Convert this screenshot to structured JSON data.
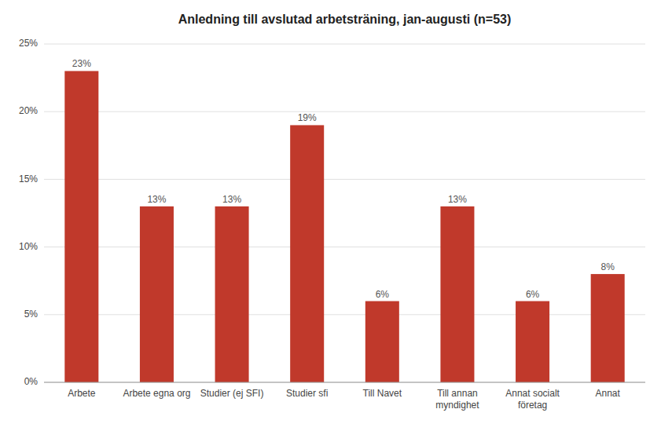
{
  "chart_data": {
    "type": "bar",
    "title": "Anledning till avslutad arbetsträning, jan-augusti (n=53)",
    "categories": [
      "Arbete",
      "Arbete egna org",
      "Studier (ej SFI)",
      "Studier sfi",
      "Till Navet",
      "Till annan\nmyndighet",
      "Annat socialt\nföretag",
      "Annat"
    ],
    "values": [
      23,
      13,
      13,
      19,
      6,
      13,
      6,
      8
    ],
    "value_labels": [
      "23%",
      "13%",
      "13%",
      "19%",
      "6%",
      "13%",
      "6%",
      "8%"
    ],
    "data_labels": true,
    "color": "#c0392b",
    "ylim": [
      0,
      25
    ],
    "yticks": [
      {
        "value": 0,
        "label": "0%"
      },
      {
        "value": 5,
        "label": "5%"
      },
      {
        "value": 10,
        "label": "10%"
      },
      {
        "value": 15,
        "label": "15%"
      },
      {
        "value": 20,
        "label": "20%"
      },
      {
        "value": 25,
        "label": "25%"
      }
    ],
    "grid": true
  }
}
